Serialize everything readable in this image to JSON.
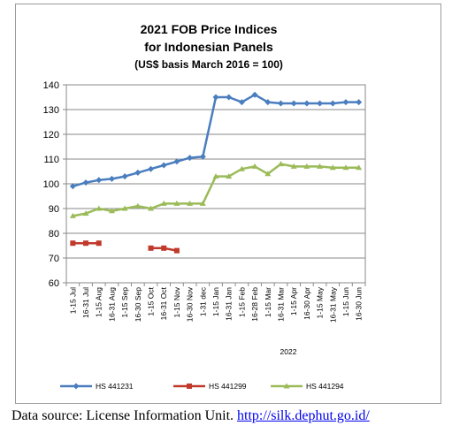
{
  "chart_data": {
    "type": "line",
    "title_lines": [
      "2021 FOB Price Indices",
      "for Indonesian Panels",
      "(US$ basis March 2016 = 100)"
    ],
    "categories": [
      "1-15 Jul",
      "16-31 Jul",
      "1-15 Aug",
      "16-31 Aug",
      "1-15 Sep",
      "16-30 Sep",
      "1-15 Oct",
      "16-31 Oct",
      "1-15 Nov",
      "16-30 Nov",
      "1-31 dec",
      "1-15 Jan",
      "16-31 Jan",
      "1-15 Feb",
      "16-28 Feb",
      "1-15 Mar",
      "16-31 Mar",
      "1-15 Apr",
      "16-30 Apr",
      "1-15 May",
      "16-31 May",
      "1-15 Jun",
      "16-30 Jun"
    ],
    "x_group_label": "2022",
    "ylim": [
      60,
      140
    ],
    "yticks": [
      60,
      70,
      80,
      90,
      100,
      110,
      120,
      130,
      140
    ],
    "grid": true,
    "legend_position": "bottom",
    "series": [
      {
        "name": "HS 441231",
        "color": "#4a7ebf",
        "marker": "diamond",
        "values": [
          99,
          100.5,
          101.5,
          102,
          103,
          104.5,
          106,
          107.5,
          109,
          110.5,
          111,
          135,
          135,
          133,
          136,
          133,
          132.5,
          132.5,
          132.5,
          132.5,
          132.5,
          133,
          133
        ]
      },
      {
        "name": "HS 441299",
        "color": "#c0392b",
        "marker": "square",
        "values": [
          76,
          76,
          76,
          null,
          null,
          null,
          74,
          74,
          73,
          null,
          null,
          null,
          null,
          null,
          null,
          null,
          null,
          null,
          null,
          null,
          null,
          null,
          null
        ]
      },
      {
        "name": "HS 441294",
        "color": "#9bbb59",
        "marker": "triangle",
        "values": [
          87,
          88,
          90,
          89,
          90,
          91,
          90,
          92,
          92,
          92,
          92,
          103,
          103,
          106,
          107,
          104,
          108,
          107,
          107,
          107,
          106.5,
          106.5,
          106.5
        ]
      }
    ]
  },
  "footer": {
    "source_text": "Data source: License Information Unit. ",
    "source_link": "http://silk.dephut.go.id/"
  }
}
